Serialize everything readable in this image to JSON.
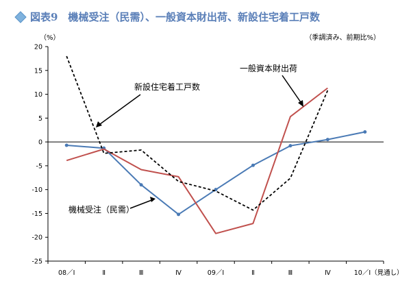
{
  "chart_data": {
    "type": "line",
    "title": "図表9　機械受注（民需）、一般資本財出荷、新設住宅着工戸数",
    "ylabel": "（%）",
    "note": "（季調済み、前期比%）",
    "ylim": [
      -25,
      20
    ],
    "yticks": [
      20,
      15,
      10,
      5,
      0,
      -5,
      -10,
      -15,
      -20,
      -25
    ],
    "categories": [
      "08／Ⅰ",
      "Ⅱ",
      "Ⅲ",
      "Ⅳ",
      "09／Ⅰ",
      "Ⅱ",
      "Ⅲ",
      "Ⅳ",
      "10／Ⅰ（見通し）"
    ],
    "series": [
      {
        "name": "機械受注（民需）",
        "color": "#4a7ab5",
        "style": "solid-marker",
        "values": [
          -0.7,
          -1.3,
          -9.0,
          -15.2,
          -10.0,
          -4.9,
          -0.8,
          0.5,
          2.1
        ]
      },
      {
        "name": "一般資本財出荷",
        "color": "#c0504d",
        "style": "solid",
        "values": [
          -3.9,
          -1.5,
          -5.8,
          -7.3,
          -19.2,
          -17.1,
          5.3,
          11.3,
          null
        ]
      },
      {
        "name": "新設住宅着工戸数",
        "color": "#000000",
        "style": "dashed",
        "values": [
          18.0,
          -2.4,
          -1.7,
          -8.3,
          -10.3,
          -14.3,
          -7.6,
          10.8,
          null
        ]
      }
    ]
  }
}
